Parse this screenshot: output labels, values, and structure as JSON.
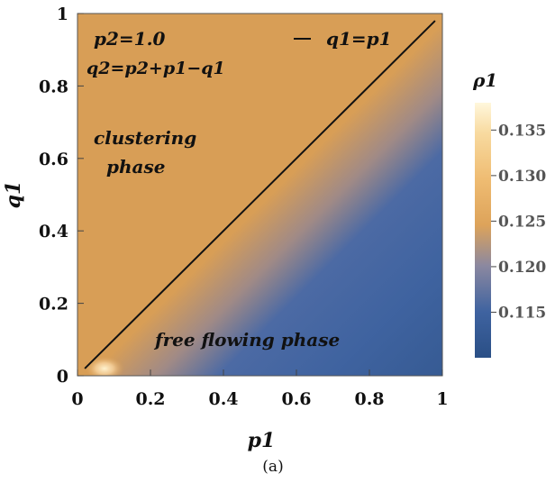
{
  "chart_data": {
    "type": "heatmap",
    "xlabel": "p1",
    "ylabel": "q1",
    "xlim": [
      0,
      1
    ],
    "ylim": [
      0,
      1
    ],
    "x_ticks": [
      "0",
      "0.2",
      "0.4",
      "0.6",
      "0.8",
      "1"
    ],
    "y_ticks": [
      "0",
      "0.2",
      "0.4",
      "0.6",
      "0.8",
      "1"
    ],
    "colorbar": {
      "label": "ρ1",
      "range": [
        0.11,
        0.138
      ],
      "ticks": [
        "0.135",
        "0.130",
        "0.125",
        "0.120",
        "0.115"
      ],
      "tick_values": [
        0.135,
        0.13,
        0.125,
        0.12,
        0.115
      ],
      "color_stops": [
        {
          "value": 0.11,
          "color": "#2a4f86"
        },
        {
          "value": 0.115,
          "color": "#3f63a0"
        },
        {
          "value": 0.12,
          "color": "#8b88a0"
        },
        {
          "value": 0.125,
          "color": "#dda35a"
        },
        {
          "value": 0.13,
          "color": "#efbc72"
        },
        {
          "value": 0.135,
          "color": "#f8da9f"
        },
        {
          "value": 0.138,
          "color": "#fff7dc"
        }
      ]
    },
    "line": {
      "legend": "q1=p1",
      "from": [
        0.02,
        0.02
      ],
      "to": [
        0.98,
        0.98
      ]
    },
    "annotations": [
      "p2=1.0",
      "q2=p2+p1−q1",
      "clustering phase",
      "free flowing phase"
    ],
    "regions": {
      "clustering_phase_color": "#d89e56",
      "free_flowing_color": "#3f63a0",
      "hotspot_near": [
        0.08,
        0.02
      ]
    }
  },
  "caption": "(a)"
}
